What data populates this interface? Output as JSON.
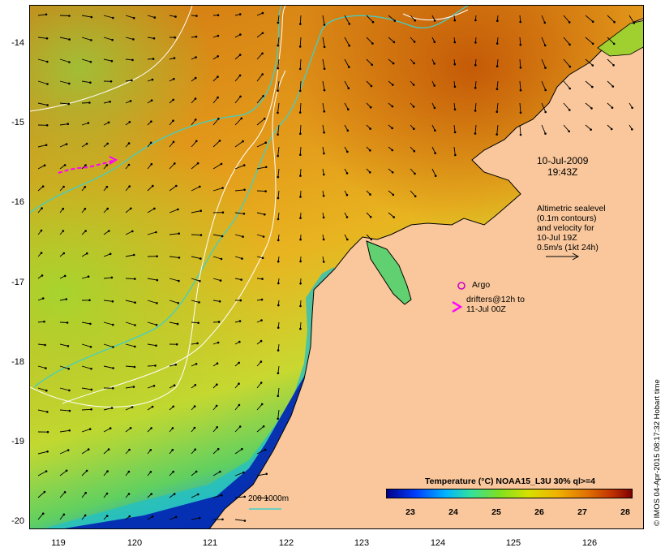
{
  "map": {
    "date_line1": "10-Jul-2009",
    "date_line2": "19:43Z",
    "altimetry_lines": [
      "Altimetric sealevel",
      "(0.1m contours)",
      "and velocity for",
      "10-Jul 19Z",
      "0.5m/s (1kt 24h)"
    ],
    "argo_label": "Argo",
    "drifters_line1": "drifters@12h to",
    "drifters_line2": "11-Jul 00Z",
    "depth_label": "200  1000m",
    "copyright": "© IMOS 04-Apr-2015 08:17:32 Hobart time",
    "lat_labels": [
      "-14",
      "-15",
      "-16",
      "-17",
      "-18",
      "-19",
      "-20"
    ],
    "lon_labels": [
      "119",
      "120",
      "121",
      "122",
      "123",
      "124",
      "125",
      "126"
    ],
    "colors": {
      "land": "#f9c79b",
      "coastline": "#000000",
      "contour_white": "#ffffff",
      "isobath_cyan": "#40d0c8",
      "drifter_magenta": "#ff00ff",
      "argo_magenta": "#cc00cc"
    }
  },
  "colorbar": {
    "title": "Temperature (°C) NOAA15_L3U 30% ql>=4",
    "ticks": [
      "23",
      "24",
      "25",
      "26",
      "27",
      "28"
    ]
  }
}
